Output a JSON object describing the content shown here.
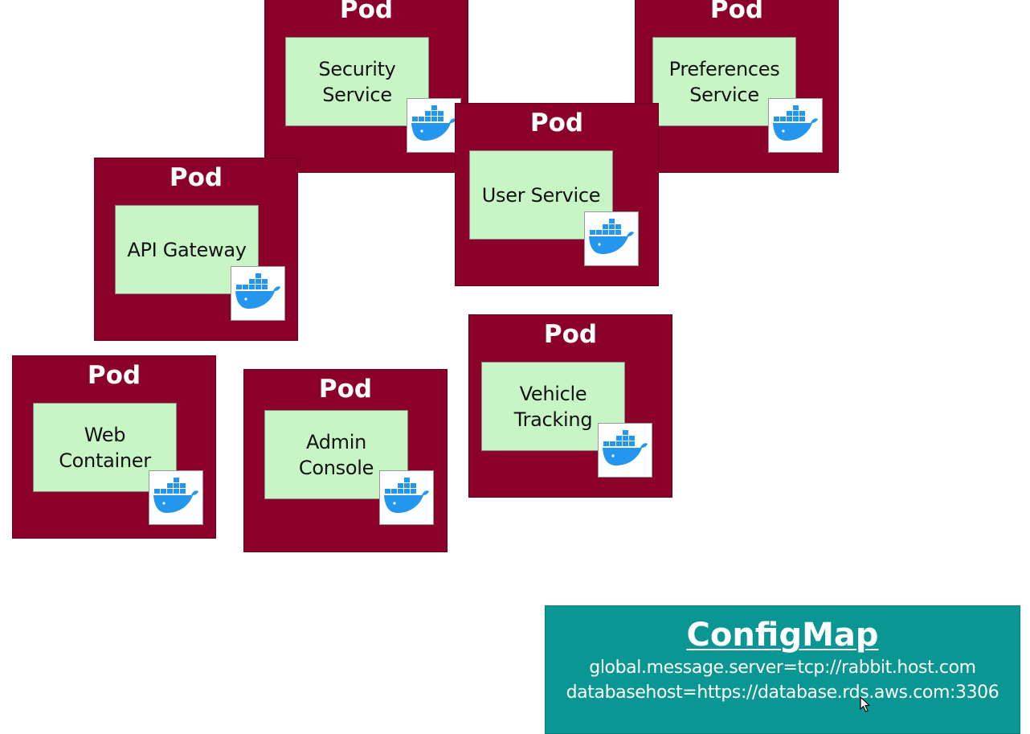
{
  "pods": [
    {
      "id": "security",
      "title": "Pod",
      "service": "Security\nService"
    },
    {
      "id": "preferences",
      "title": "Pod",
      "service": "Preferences\nService"
    },
    {
      "id": "user",
      "title": "Pod",
      "service": "User Service"
    },
    {
      "id": "api-gateway",
      "title": "Pod",
      "service": "API Gateway"
    },
    {
      "id": "vehicle-tracking",
      "title": "Pod",
      "service": "Vehicle\nTracking"
    },
    {
      "id": "web-container",
      "title": "Pod",
      "service": "Web\nContainer"
    },
    {
      "id": "admin-console",
      "title": "Pod",
      "service": "Admin\nConsole"
    }
  ],
  "icons": {
    "container": "docker-whale-icon",
    "cursor": "mouse-pointer-icon"
  },
  "configmap": {
    "title": "ConfigMap",
    "lines": [
      "global.message.server=tcp://rabbit.host.com",
      "databasehost=https://database.rds.aws.com:3306"
    ]
  },
  "colors": {
    "pod": "#8b0029",
    "service": "#c8f5c6",
    "configmap": "#0a9693",
    "docker": "#2496ed"
  }
}
